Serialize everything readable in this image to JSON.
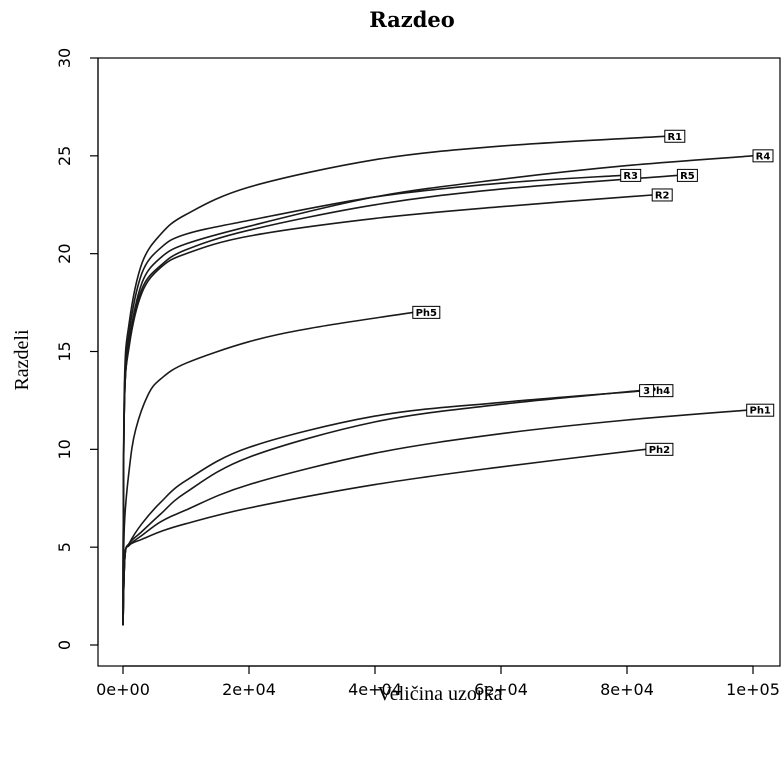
{
  "chart_data": {
    "type": "line",
    "title": "Razdeo",
    "xlabel": "Veličina uzorka",
    "ylabel": "Razdeli",
    "xlim": [
      0,
      100000
    ],
    "ylim": [
      0,
      30
    ],
    "xticks": [
      "0e+00",
      "2e+04",
      "4e+04",
      "6e+04",
      "8e+04",
      "1e+05"
    ],
    "yticks": [
      "0",
      "5",
      "10",
      "15",
      "20",
      "25",
      "30"
    ],
    "grid": false,
    "legend": "none",
    "series": [
      {
        "name": "R1",
        "x": [
          0,
          200,
          1000,
          3000,
          6000,
          10000,
          20000,
          40000,
          60000,
          86000
        ],
        "y": [
          1,
          13,
          16.5,
          19.5,
          21,
          22,
          23.4,
          24.8,
          25.5,
          26
        ]
      },
      {
        "name": "R4",
        "x": [
          0,
          200,
          1000,
          3000,
          6000,
          10000,
          20000,
          40000,
          60000,
          80000,
          100000
        ],
        "y": [
          1,
          12,
          15.5,
          18.5,
          19.8,
          20.5,
          21.4,
          22.9,
          23.8,
          24.5,
          25
        ]
      },
      {
        "name": "R3",
        "x": [
          0,
          200,
          1000,
          3000,
          6000,
          10000,
          20000,
          40000,
          60000,
          79000
        ],
        "y": [
          1,
          12.5,
          16,
          19,
          20.3,
          21,
          21.7,
          22.9,
          23.6,
          24
        ]
      },
      {
        "name": "R5",
        "x": [
          0,
          200,
          1000,
          3000,
          6000,
          10000,
          20000,
          40000,
          60000,
          88000
        ],
        "y": [
          1,
          12,
          15.5,
          18.2,
          19.4,
          20.2,
          21.2,
          22.5,
          23.3,
          24
        ]
      },
      {
        "name": "R2",
        "x": [
          0,
          200,
          1000,
          3000,
          6000,
          10000,
          20000,
          40000,
          60000,
          84000
        ],
        "y": [
          1,
          12,
          15.3,
          18,
          19.3,
          20,
          20.9,
          21.8,
          22.4,
          23
        ]
      },
      {
        "name": "Ph5",
        "x": [
          0,
          200,
          1000,
          2000,
          4000,
          6000,
          10000,
          20000,
          30000,
          46000
        ],
        "y": [
          1,
          6,
          9,
          11,
          12.8,
          13.6,
          14.4,
          15.5,
          16.2,
          17
        ]
      },
      {
        "name": "Ph4",
        "x": [
          0,
          300,
          1000,
          3000,
          6000,
          10000,
          20000,
          40000,
          60000,
          83000
        ],
        "y": [
          1,
          4.5,
          5.2,
          6.2,
          7.3,
          8.4,
          10.1,
          11.7,
          12.4,
          13
        ]
      },
      {
        "name": "3",
        "x": [
          0,
          300,
          1000,
          3000,
          6000,
          10000,
          20000,
          40000,
          60000,
          82000
        ],
        "y": [
          1,
          4.5,
          5.2,
          5.8,
          6.7,
          7.8,
          9.6,
          11.4,
          12.3,
          13
        ]
      },
      {
        "name": "Ph1",
        "x": [
          0,
          300,
          1000,
          3000,
          6000,
          10000,
          20000,
          40000,
          60000,
          80000,
          99000
        ],
        "y": [
          1,
          4.5,
          5.1,
          5.6,
          6.3,
          6.9,
          8.2,
          9.8,
          10.8,
          11.5,
          12
        ]
      },
      {
        "name": "Ph2",
        "x": [
          0,
          300,
          1000,
          3000,
          6000,
          10000,
          20000,
          40000,
          60000,
          83000
        ],
        "y": [
          1,
          4.5,
          5.1,
          5.4,
          5.8,
          6.2,
          7,
          8.2,
          9.1,
          10
        ]
      }
    ]
  }
}
